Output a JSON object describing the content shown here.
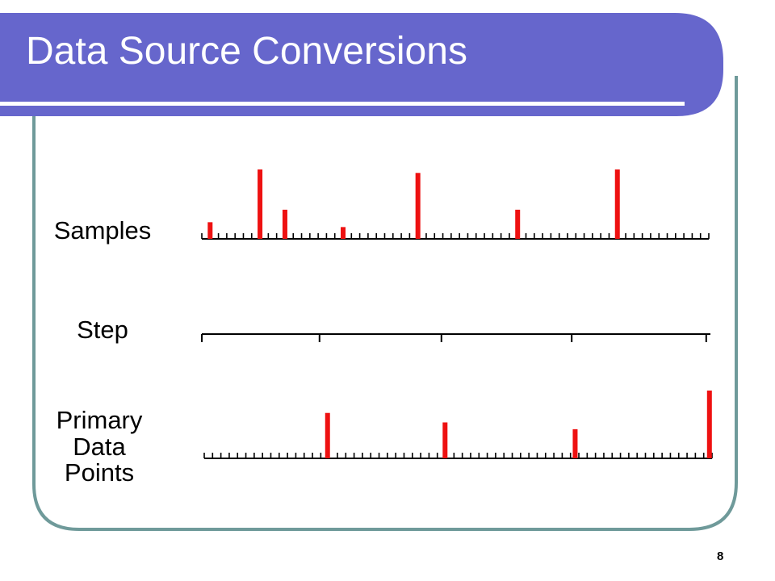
{
  "slide": {
    "title": "Data Source Conversions",
    "number": "8",
    "colors": {
      "title_band": "#6666cc",
      "frame_border": "#6f9a9a",
      "marks": "#ee1111",
      "axis": "#000000"
    }
  },
  "rows": [
    {
      "id": "samples",
      "label": "Samples",
      "marks": [
        {
          "at": 1,
          "height": 0.24
        },
        {
          "at": 7,
          "height": 1.0
        },
        {
          "at": 10,
          "height": 0.42
        },
        {
          "at": 17,
          "height": 0.17
        },
        {
          "at": 26,
          "height": 0.95
        },
        {
          "at": 38,
          "height": 0.42
        },
        {
          "at": 50,
          "height": 1.0
        }
      ]
    },
    {
      "id": "step",
      "label": "Step",
      "ticks": [
        0,
        14,
        28.5,
        44,
        60
      ]
    },
    {
      "id": "primary",
      "label_lines": [
        "Primary",
        "Data",
        "Points"
      ],
      "marks": [
        {
          "at": 14.5,
          "height": 0.67
        },
        {
          "at": 28.5,
          "height": 0.53
        },
        {
          "at": 44,
          "height": 0.43
        },
        {
          "at": 60,
          "height": 1.0
        }
      ]
    }
  ]
}
